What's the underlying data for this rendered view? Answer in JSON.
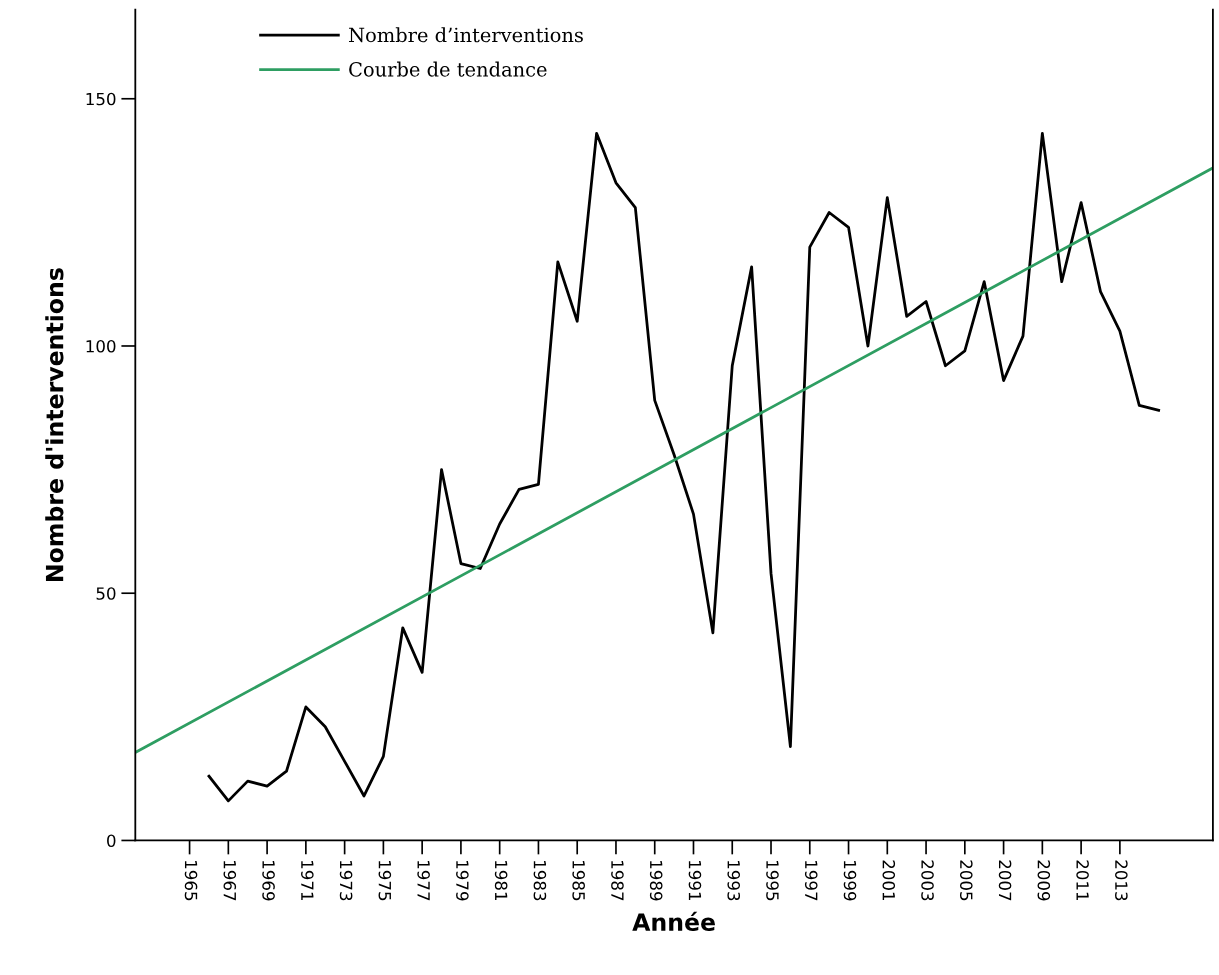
{
  "chart_data": {
    "type": "line",
    "xlabel": "Année",
    "ylabel": "Nombre d'interventions",
    "xlim": [
      1962.2,
      2017.8
    ],
    "ylim": [
      0,
      168
    ],
    "xticks": [
      1965,
      1967,
      1969,
      1971,
      1973,
      1975,
      1977,
      1979,
      1981,
      1983,
      1985,
      1987,
      1989,
      1991,
      1993,
      1995,
      1997,
      1999,
      2001,
      2003,
      2005,
      2007,
      2009,
      2011,
      2013
    ],
    "yticks": [
      0,
      50,
      100,
      150
    ],
    "grid": false,
    "legend": "top left",
    "marker": "none",
    "line_style": "solid",
    "series": [
      {
        "name": "Nombre d’interventions",
        "color": "#000000",
        "x": [
          1966,
          1967,
          1968,
          1969,
          1970,
          1971,
          1972,
          1973,
          1974,
          1975,
          1976,
          1977,
          1978,
          1979,
          1980,
          1981,
          1982,
          1983,
          1984,
          1985,
          1986,
          1987,
          1988,
          1989,
          1990,
          1991,
          1992,
          1993,
          1994,
          1995,
          1996,
          1997,
          1998,
          1999,
          2000,
          2001,
          2002,
          2003,
          2004,
          2005,
          2006,
          2007,
          2008,
          2009,
          2010,
          2011,
          2012,
          2013,
          2014,
          2015
        ],
        "values": [
          13,
          8,
          12,
          11,
          14,
          27,
          23,
          16,
          9,
          17,
          43,
          34,
          75,
          56,
          55,
          64,
          71,
          72,
          117,
          105,
          143,
          133,
          128,
          89,
          78,
          66,
          42,
          96,
          116,
          54,
          19,
          120,
          127,
          124,
          100,
          130,
          106,
          109,
          96,
          99,
          113,
          93,
          102,
          143,
          113,
          129,
          111,
          103,
          88,
          87
        ]
      },
      {
        "name": "Courbe de tendance",
        "color": "#2e9e62",
        "type": "line",
        "x": [
          1962.2,
          2017.8
        ],
        "values": [
          17.8,
          136
        ]
      }
    ]
  }
}
